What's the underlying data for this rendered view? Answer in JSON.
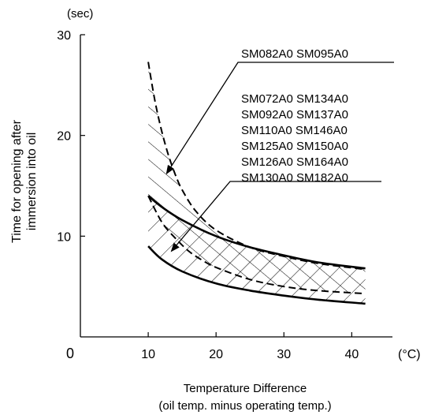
{
  "chart_data": {
    "type": "area",
    "x_unit": "(°C)",
    "y_unit": "(sec)",
    "ylabel": [
      "Time for opening after",
      "immersion into oil"
    ],
    "xlabel": [
      "Temperature Difference",
      "(oil temp. minus operating temp.)"
    ],
    "origin_label": "0",
    "xlim": [
      0,
      46
    ],
    "ylim": [
      0,
      30
    ],
    "x_ticks": [
      10,
      20,
      30,
      40
    ],
    "y_ticks": [
      10,
      20,
      30
    ],
    "bands": [
      {
        "models": [
          "SM082A0 SM095A0"
        ],
        "hatch": "diagonal",
        "upper_style": "dashed",
        "lower_style": "dashed",
        "upper": [
          [
            10,
            27.3
          ],
          [
            11,
            23.4
          ],
          [
            12,
            20.4
          ],
          [
            13,
            18.0
          ],
          [
            14,
            16.1
          ],
          [
            15,
            14.6
          ],
          [
            17,
            12.5
          ],
          [
            20,
            10.6
          ],
          [
            25,
            8.9
          ],
          [
            30,
            8.0
          ],
          [
            35,
            7.3
          ],
          [
            42,
            6.7
          ]
        ],
        "lower": [
          [
            10,
            14.0
          ],
          [
            12,
            11.4
          ],
          [
            14,
            9.8
          ],
          [
            16,
            8.5
          ],
          [
            18,
            7.6
          ],
          [
            20,
            6.9
          ],
          [
            25,
            5.7
          ],
          [
            30,
            5.0
          ],
          [
            35,
            4.6
          ],
          [
            42,
            4.3
          ]
        ],
        "arrow_tip": [
          12.7,
          16.2
        ]
      },
      {
        "models": [
          "SM072A0 SM134A0",
          "SM092A0 SM137A0",
          "SM110A0 SM146A0",
          "SM125A0 SM150A0",
          "SM126A0 SM164A0",
          "SM130A0 SM182A0"
        ],
        "hatch": "diagonal",
        "upper_style": "solid",
        "lower_style": "solid",
        "upper": [
          [
            10,
            14.0
          ],
          [
            12,
            12.9
          ],
          [
            15,
            11.6
          ],
          [
            20,
            10.0
          ],
          [
            25,
            8.9
          ],
          [
            30,
            8.1
          ],
          [
            35,
            7.4
          ],
          [
            42,
            6.8
          ]
        ],
        "lower": [
          [
            10,
            9.0
          ],
          [
            12,
            7.7
          ],
          [
            15,
            6.5
          ],
          [
            20,
            5.3
          ],
          [
            25,
            4.6
          ],
          [
            30,
            4.1
          ],
          [
            35,
            3.7
          ],
          [
            42,
            3.3
          ]
        ],
        "arrow_tip": [
          13.4,
          8.5
        ]
      }
    ]
  }
}
